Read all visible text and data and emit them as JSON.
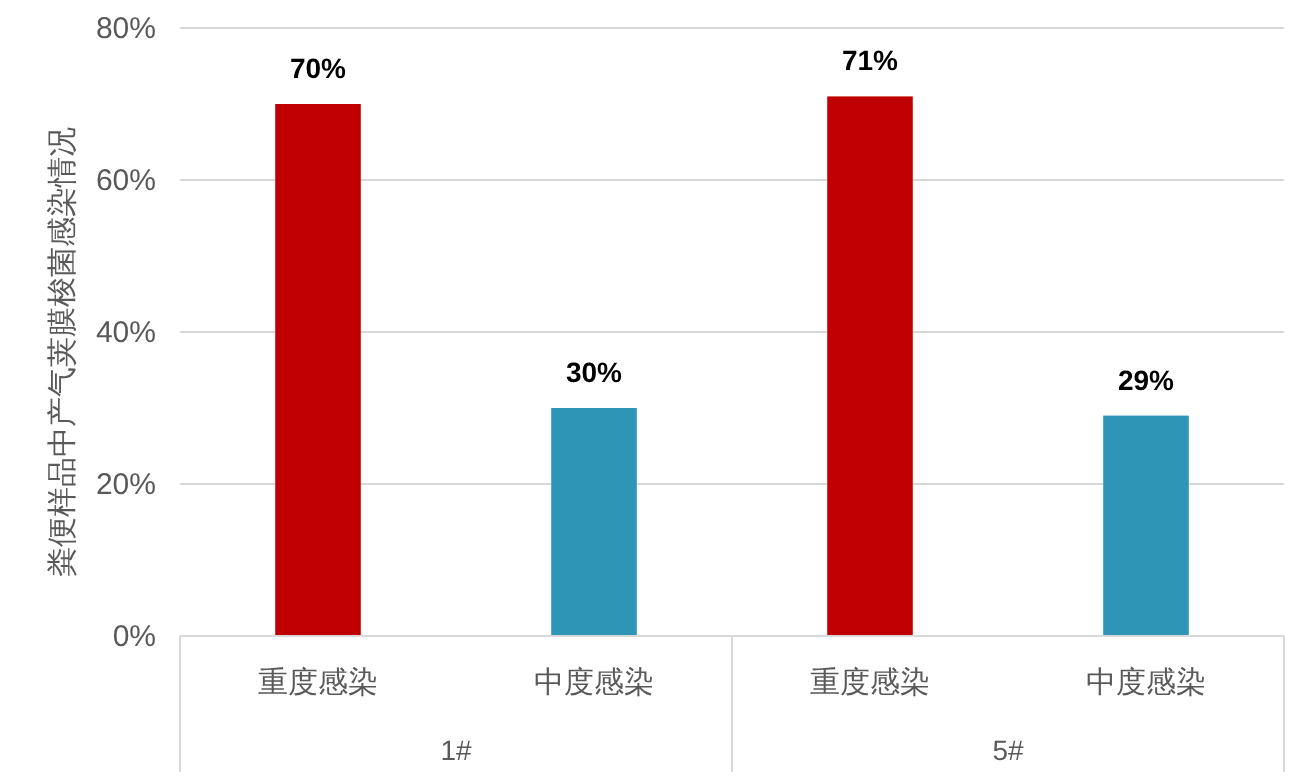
{
  "chart_data": {
    "type": "bar",
    "ylabel": "粪便样品中产气荚膜梭菌感染情况",
    "categories": [
      "重度感染",
      "中度感染",
      "重度感染",
      "中度感染"
    ],
    "values": [
      70,
      30,
      71,
      29
    ],
    "colors": [
      "#c00000",
      "#2e95b6",
      "#c00000",
      "#2e95b6"
    ],
    "value_labels": [
      "70%",
      "30%",
      "71%",
      "29%"
    ],
    "annotations": [
      "1#",
      "5#"
    ],
    "ylim": [
      0,
      80
    ],
    "yticks": [
      {
        "value": 0,
        "label": "0%"
      },
      {
        "value": 20,
        "label": "20%"
      },
      {
        "value": 40,
        "label": "40%"
      },
      {
        "value": 60,
        "label": "60%"
      },
      {
        "value": 80,
        "label": "80%"
      }
    ],
    "grid": "y"
  }
}
